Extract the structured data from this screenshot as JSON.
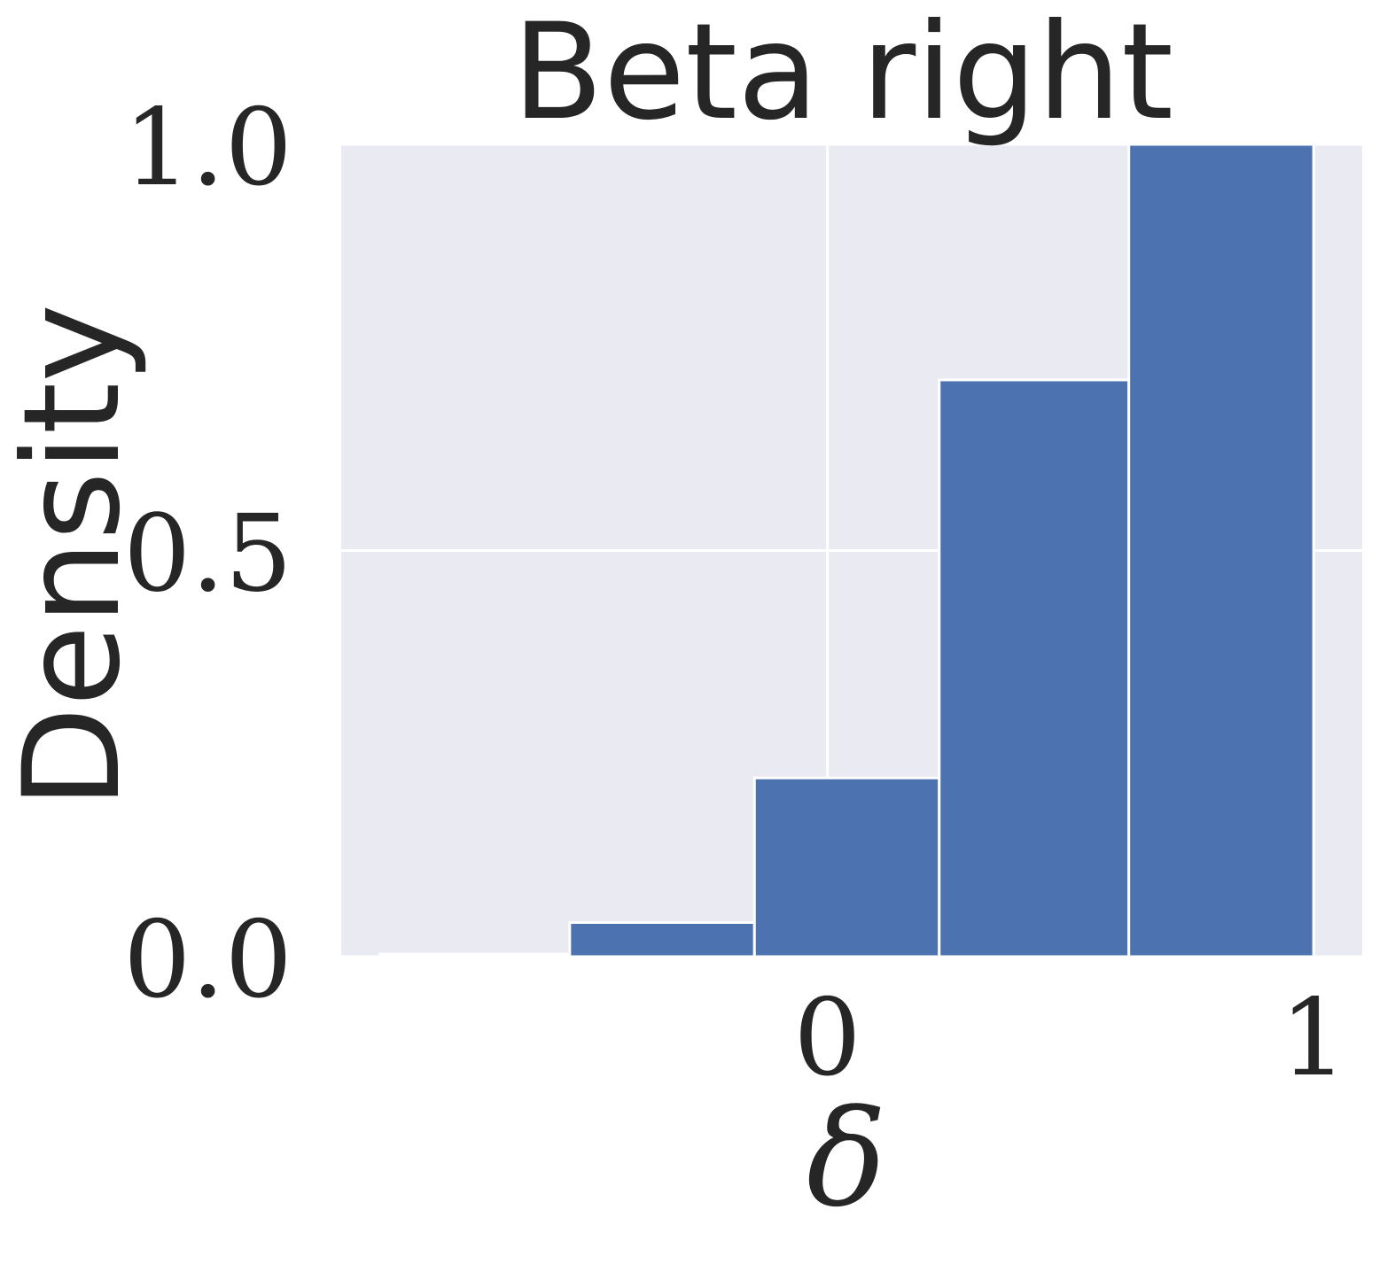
{
  "chart_data": {
    "type": "bar",
    "title": "Beta right",
    "xlabel": "δ",
    "ylabel": "Density",
    "grid": true,
    "colors": {
      "bar": "#4c72b0",
      "background": "#eaeaf2",
      "grid": "#ffffff",
      "text": "#262626"
    },
    "xlim": [
      -1.0,
      1.1
    ],
    "ylim": [
      0.0,
      1.0
    ],
    "xticks": [
      {
        "value": 0,
        "label": "0"
      },
      {
        "value": 1,
        "label": "1"
      }
    ],
    "yticks": [
      {
        "value": 0.0,
        "label": "0.0"
      },
      {
        "value": 0.5,
        "label": "0.5"
      },
      {
        "value": 1.0,
        "label": "1.0"
      }
    ],
    "bins": [
      {
        "x0": -0.92,
        "x1": -0.53,
        "value": 0.003
      },
      {
        "x0": -0.53,
        "x1": -0.15,
        "value": 0.042
      },
      {
        "x0": -0.15,
        "x1": 0.23,
        "value": 0.22
      },
      {
        "x0": 0.23,
        "x1": 0.62,
        "value": 0.71
      },
      {
        "x0": 0.62,
        "x1": 1.0,
        "value": 1.0
      }
    ]
  }
}
